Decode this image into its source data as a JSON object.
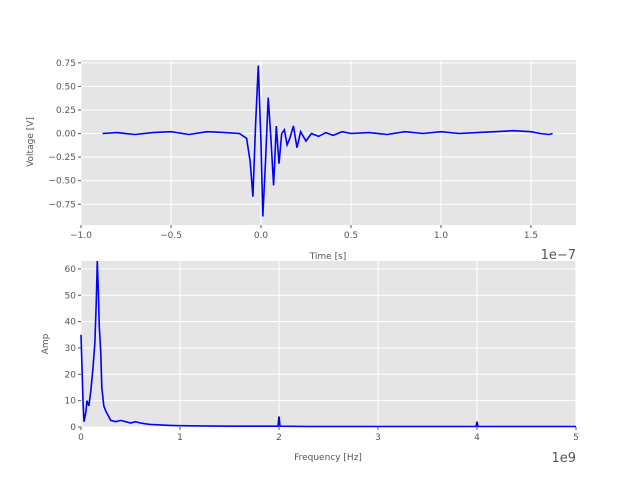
{
  "chart_data": [
    {
      "type": "line",
      "title": "",
      "xlabel": "Time [s]",
      "ylabel": "Voltage [V]",
      "x_offset_text": "1e−7",
      "xlim": [
        -1.0,
        1.75
      ],
      "ylim": [
        -0.97,
        0.78
      ],
      "xticks": [
        -1.0,
        -0.5,
        0.0,
        0.5,
        1.0,
        1.5
      ],
      "xtick_labels": [
        "−1.0",
        "−0.5",
        "0.0",
        "0.5",
        "1.0",
        "1.5"
      ],
      "yticks": [
        -0.75,
        -0.5,
        -0.25,
        0.0,
        0.25,
        0.5,
        0.75
      ],
      "ytick_labels": [
        "−0.75",
        "−0.50",
        "−0.25",
        "0.00",
        "0.25",
        "0.50",
        "0.75"
      ],
      "grid": true,
      "line_color": "#0000ff",
      "series": [
        {
          "x": [
            -0.88,
            -0.8,
            -0.7,
            -0.6,
            -0.5,
            -0.4,
            -0.3,
            -0.2,
            -0.12,
            -0.08,
            -0.06,
            -0.045,
            -0.03,
            -0.015,
            0.0,
            0.01,
            0.025,
            0.04,
            0.055,
            0.07,
            0.085,
            0.1,
            0.115,
            0.13,
            0.145,
            0.16,
            0.18,
            0.2,
            0.22,
            0.25,
            0.28,
            0.32,
            0.36,
            0.4,
            0.45,
            0.5,
            0.6,
            0.7,
            0.8,
            0.9,
            1.0,
            1.1,
            1.2,
            1.3,
            1.4,
            1.5,
            1.55,
            1.6,
            1.62
          ],
          "y": [
            0.0,
            0.01,
            -0.01,
            0.01,
            0.02,
            -0.01,
            0.02,
            0.01,
            0.0,
            -0.05,
            -0.3,
            -0.67,
            0.1,
            0.72,
            -0.1,
            -0.88,
            -0.3,
            0.38,
            -0.05,
            -0.55,
            0.08,
            -0.32,
            0.0,
            0.04,
            -0.12,
            -0.05,
            0.08,
            -0.15,
            0.02,
            -0.08,
            0.0,
            -0.03,
            0.01,
            -0.02,
            0.02,
            0.0,
            0.01,
            -0.01,
            0.02,
            0.0,
            0.02,
            0.0,
            0.01,
            0.02,
            0.03,
            0.02,
            0.0,
            -0.01,
            0.0
          ]
        }
      ]
    },
    {
      "type": "line",
      "title": "",
      "xlabel": "Frequency [Hz]",
      "ylabel": "Amp",
      "x_offset_text": "1e9",
      "xlim": [
        0.0,
        5.0
      ],
      "ylim": [
        0,
        63
      ],
      "xticks": [
        0,
        1,
        2,
        3,
        4,
        5
      ],
      "xtick_labels": [
        "0",
        "1",
        "2",
        "3",
        "4",
        "5"
      ],
      "yticks": [
        0,
        10,
        20,
        30,
        40,
        50,
        60
      ],
      "ytick_labels": [
        "0",
        "10",
        "20",
        "30",
        "40",
        "50",
        "60"
      ],
      "grid": true,
      "line_color": "#0000ff",
      "series": [
        {
          "x": [
            0.0,
            0.02,
            0.03,
            0.05,
            0.06,
            0.08,
            0.1,
            0.12,
            0.14,
            0.155,
            0.165,
            0.175,
            0.185,
            0.2,
            0.21,
            0.23,
            0.25,
            0.28,
            0.3,
            0.35,
            0.4,
            0.45,
            0.5,
            0.55,
            0.6,
            0.65,
            0.7,
            0.8,
            0.9,
            1.0,
            1.2,
            1.5,
            1.8,
            1.99,
            2.0,
            2.01,
            2.3,
            2.7,
            3.0,
            3.5,
            3.99,
            4.0,
            4.01,
            4.5,
            5.0
          ],
          "y": [
            35.0,
            10.0,
            2.0,
            6.0,
            10.0,
            8.0,
            14.0,
            22.0,
            32.0,
            48.0,
            63.0,
            52.0,
            38.0,
            28.0,
            15.0,
            8.0,
            6.0,
            4.0,
            2.5,
            2.0,
            2.5,
            2.0,
            1.5,
            2.0,
            1.5,
            1.2,
            1.0,
            0.8,
            0.6,
            0.5,
            0.4,
            0.3,
            0.3,
            0.3,
            4.0,
            0.3,
            0.2,
            0.2,
            0.2,
            0.2,
            0.2,
            2.0,
            0.2,
            0.2,
            0.2
          ]
        }
      ]
    }
  ]
}
